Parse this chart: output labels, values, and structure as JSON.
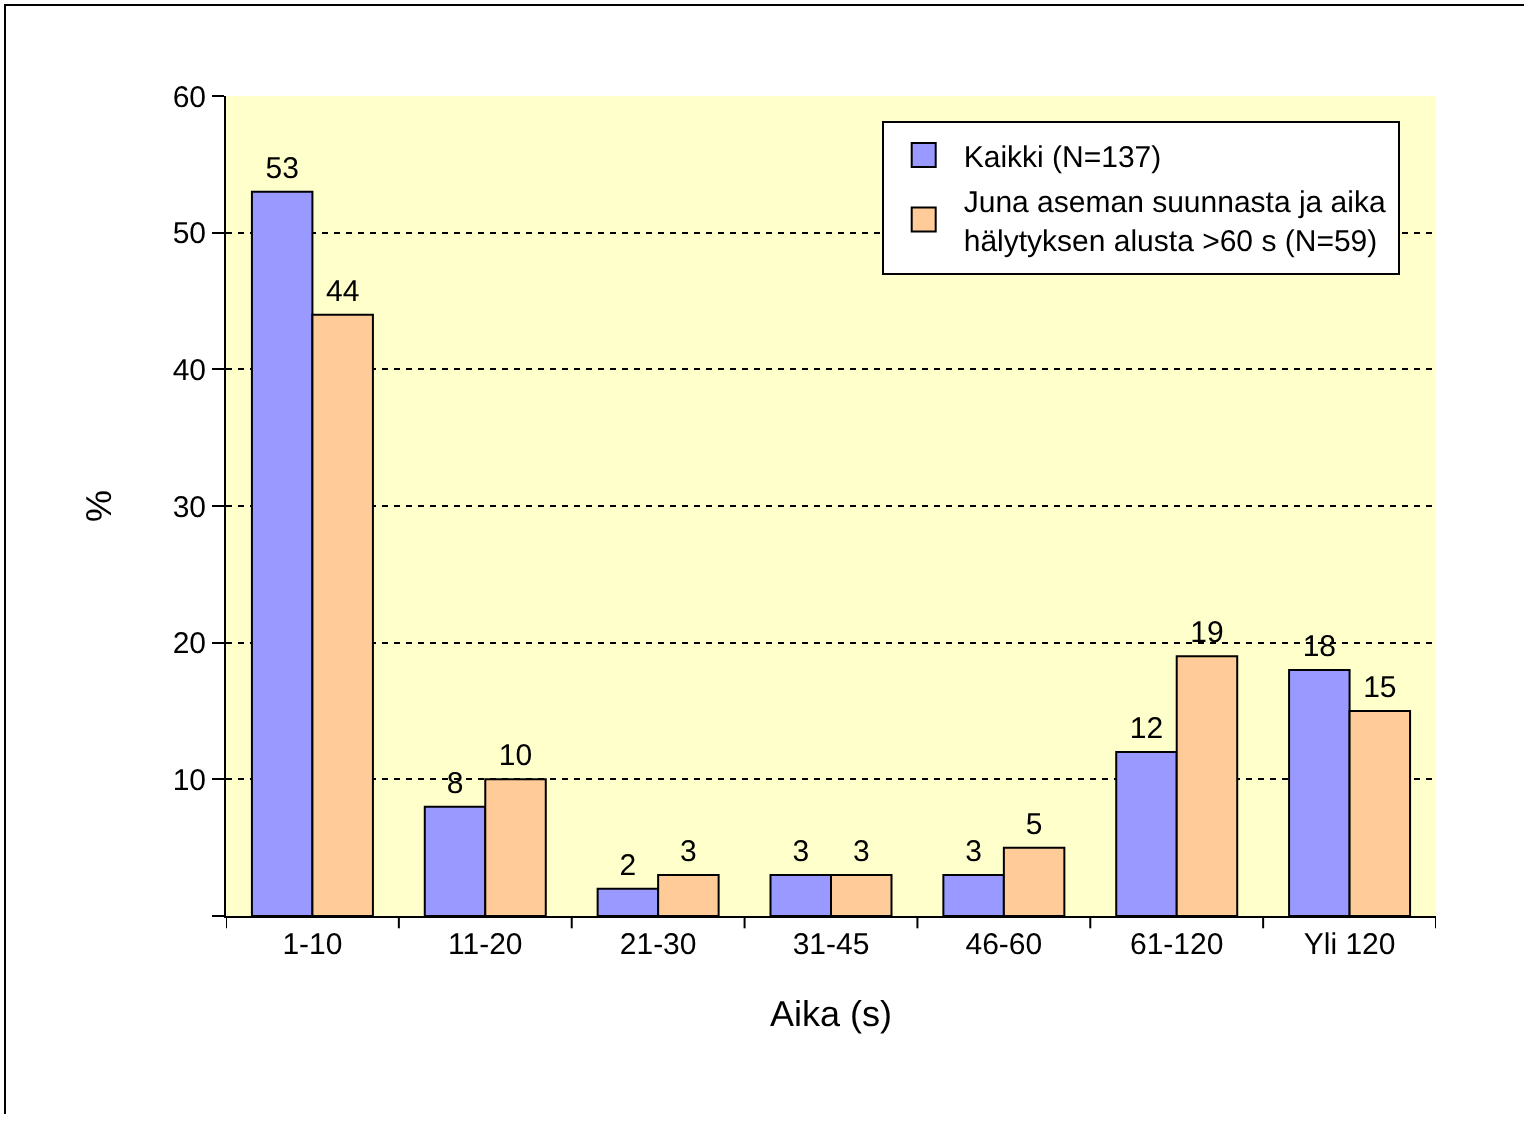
{
  "chart_data": {
    "type": "bar",
    "xlabel": "Aika (s)",
    "ylabel": "%",
    "categories": [
      "1-10",
      "11-20",
      "21-30",
      "31-45",
      "46-60",
      "61-120",
      "Yli 120"
    ],
    "series": [
      {
        "name": "Kaikki (N=137)",
        "color": "#9999ff",
        "values": [
          53,
          8,
          2,
          3,
          3,
          12,
          18
        ]
      },
      {
        "name": "Juna aseman suunnasta ja aika hälytyksen alusta >60 s (N=59)",
        "color": "#ffcc99",
        "values": [
          44,
          10,
          3,
          3,
          5,
          19,
          15
        ]
      }
    ],
    "ylim": [
      0,
      60
    ],
    "yticks": [
      {
        "value": 0,
        "label": null
      },
      10,
      20,
      30,
      40,
      50,
      60
    ],
    "grid": "y",
    "legend": "top right",
    "data_labels": true
  }
}
